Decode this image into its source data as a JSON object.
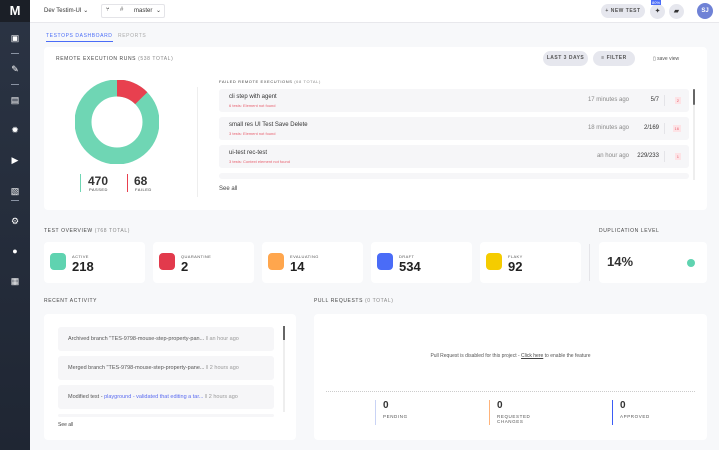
{
  "app": {
    "logo": "M",
    "project": "Dev Testim-UI",
    "branch": "master",
    "new_test": "NEW TEST",
    "badge": "80%",
    "avatar": "SJ"
  },
  "sidebar": {
    "icons": [
      "dashboard-icon",
      "pencil-icon",
      "list-icon",
      "bug-icon",
      "play-icon",
      "folder-settings-icon",
      "gear-icon",
      "user-icon",
      "building-icon"
    ]
  },
  "tabs": [
    {
      "label": "TESTOPS DASHBOARD",
      "active": true
    },
    {
      "label": "REPORTS",
      "active": false
    }
  ],
  "remote": {
    "title": "REMOTE EXECUTION RUNS",
    "total": "(538 TOTAL)",
    "last_days": "LAST 3 DAYS",
    "filter": "FILTER",
    "save_view": "save view",
    "passed": 470,
    "failed": 68,
    "passed_label": "PASSED",
    "failed_label": "FAILED",
    "colors": {
      "passed": "#6fd6b4",
      "failed": "#e8404f"
    }
  },
  "failed": {
    "title": "FAILED REMOTE EXECUTIONS",
    "total": "(68 TOTAL)",
    "see_all": "See all",
    "rows": [
      {
        "name": "cli step with agent",
        "error": "6 tests: Element not found",
        "time": "17 minutes ago",
        "ratio": "5/7",
        "count": "2"
      },
      {
        "name": "small res UI Test Save Delete",
        "error": "3 tests: Element not found",
        "time": "18 minutes ago",
        "ratio": "2/169",
        "count": "16"
      },
      {
        "name": "ui-test rec-test",
        "error": "3 tests: Context element not found",
        "time": "an hour ago",
        "ratio": "229/233",
        "count": "1"
      }
    ]
  },
  "overview": {
    "title": "TEST OVERVIEW",
    "total": "(768 TOTAL)",
    "cards": [
      {
        "label": "ACTIVE",
        "value": "218",
        "color": "#5fd3b0"
      },
      {
        "label": "QUARANTINE",
        "value": "2",
        "color": "#e23a4c"
      },
      {
        "label": "EVALUATING",
        "value": "14",
        "color": "#ffa64d"
      },
      {
        "label": "DRAFT",
        "value": "534",
        "color": "#4a6cf7"
      },
      {
        "label": "FLAKY",
        "value": "92",
        "color": "#f5cc00"
      }
    ]
  },
  "duplication": {
    "title": "DUPLICATION LEVEL",
    "value": "14%",
    "color": "#5fd3b0"
  },
  "activity": {
    "title": "RECENT ACTIVITY",
    "see_all": "See all",
    "items": [
      {
        "text": "Archived branch \"TES-9798-mouse-step-property-pan...",
        "link": "",
        "time": "an hour ago"
      },
      {
        "text": "Merged branch \"TES-9798-mouse-step-property-pane...",
        "link": "",
        "time": "2 hours ago"
      },
      {
        "text": "Modified test - ",
        "link": "playground - validated that editing a tar...",
        "time": "2 hours ago"
      }
    ]
  },
  "pulls": {
    "title": "PULL REQUESTS",
    "total": "(0 TOTAL)",
    "msg_pre": "Pull Request is disabled for this project - ",
    "msg_link": "Click here",
    "msg_post": " to enable the feature",
    "stats": [
      {
        "value": "0",
        "label": "PENDING",
        "color": "#c9d3f5"
      },
      {
        "value": "0",
        "label": "REQUESTED CHANGES",
        "color": "#ffb37a"
      },
      {
        "value": "0",
        "label": "APPROVED",
        "color": "#3b5cf5"
      }
    ]
  }
}
